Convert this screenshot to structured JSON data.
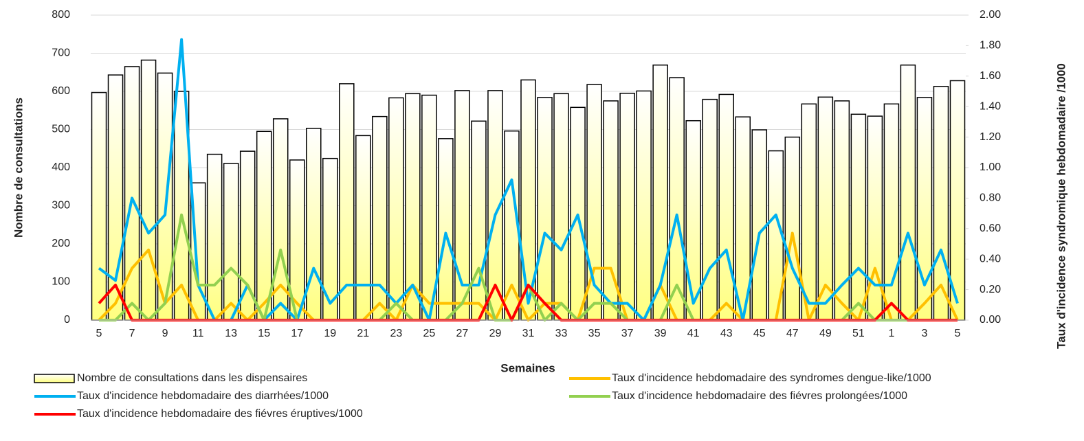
{
  "chart_data": {
    "type": "bar",
    "x_label": "Semaines",
    "y_label": "Nombre de consultations",
    "y2_label": "Taux d'incidence syndromique hebdomadaire /1000",
    "categories": [
      "5",
      null,
      "7",
      null,
      "9",
      null,
      "11",
      null,
      "13",
      null,
      "15",
      null,
      "17",
      null,
      "19",
      null,
      "21",
      null,
      "23",
      null,
      "25",
      null,
      "27",
      null,
      "29",
      null,
      "31",
      null,
      "33",
      null,
      "35",
      null,
      "37",
      null,
      "39",
      null,
      "41",
      null,
      "43",
      null,
      "45",
      null,
      "47",
      null,
      "49",
      null,
      "51",
      null,
      "1",
      null,
      "3",
      null,
      "5"
    ],
    "ylim": [
      0,
      800
    ],
    "yticks": [
      0,
      100,
      200,
      300,
      400,
      500,
      600,
      700,
      800
    ],
    "y2lim": [
      0,
      2
    ],
    "y2ticks": [
      {
        "value": 0,
        "label": "0.00"
      },
      {
        "value": 0.2,
        "label": "0.20"
      },
      {
        "value": 0.4,
        "label": "0.40"
      },
      {
        "value": 0.6,
        "label": "0.60"
      },
      {
        "value": 0.8,
        "label": "0.80"
      },
      {
        "value": 1,
        "label": "1.00"
      },
      {
        "value": 1.2,
        "label": "1.20"
      },
      {
        "value": 1.4,
        "label": "1.40"
      },
      {
        "value": 1.6,
        "label": "1.60"
      },
      {
        "value": 1.8,
        "label": "1.80"
      },
      {
        "value": 2,
        "label": "2.00"
      }
    ],
    "grid": true,
    "series": [
      {
        "name": "Nombre de consultations dans les dispensaires",
        "type": "bar",
        "axis": "y",
        "color": "#ffff80",
        "values": [
          597,
          643,
          665,
          682,
          648,
          600,
          360,
          435,
          411,
          443,
          495,
          528,
          420,
          503,
          424,
          620,
          484,
          534,
          583,
          594,
          590,
          476,
          602,
          522,
          602,
          496,
          630,
          584,
          594,
          558,
          618,
          575,
          595,
          601,
          669,
          636,
          523,
          579,
          592,
          533,
          499,
          444,
          480,
          567,
          585,
          575,
          540,
          535,
          567,
          669,
          584,
          613,
          628
        ]
      },
      {
        "name": "Taux d'incidence hebdomadaire des syndromes dengue-like/1000",
        "type": "line",
        "axis": "y2",
        "color": "#ffc000",
        "values": [
          0,
          0.11,
          0.34,
          0.46,
          0.11,
          0.23,
          0,
          0,
          0.11,
          0,
          0.11,
          0.23,
          0.11,
          0,
          0,
          0,
          0,
          0.11,
          0,
          0.23,
          0.11,
          0.11,
          0.11,
          0.11,
          0,
          0.23,
          0,
          0.11,
          0.11,
          0,
          0.34,
          0.34,
          0,
          0,
          0.23,
          0,
          0,
          0,
          0.11,
          0,
          0,
          0,
          0.57,
          0,
          0.23,
          0.11,
          0,
          0.34,
          0,
          0,
          0.11,
          0.23,
          0
        ]
      },
      {
        "name": "Taux d'incidence hebdomadaire des diarrhées/1000",
        "type": "line",
        "axis": "y2",
        "color": "#00b0f0",
        "values": [
          0.34,
          0.26,
          0.8,
          0.57,
          0.69,
          1.84,
          0.23,
          0,
          0,
          0.23,
          0,
          0.11,
          0,
          0.34,
          0.11,
          0.23,
          0.23,
          0.23,
          0.11,
          0.23,
          0,
          0.57,
          0.23,
          0.23,
          0.69,
          0.92,
          0.11,
          0.57,
          0.46,
          0.69,
          0.23,
          0.11,
          0.11,
          0,
          0.23,
          0.69,
          0.11,
          0.34,
          0.46,
          0,
          0.57,
          0.69,
          0.34,
          0.11,
          0.11,
          0.23,
          0.34,
          0.23,
          0.23,
          0.57,
          0.23,
          0.46,
          0.11
        ]
      },
      {
        "name": "Taux d'incidence hebdomadaire des fiévres prolongées/1000",
        "type": "line",
        "axis": "y2",
        "color": "#92d050",
        "values": [
          0,
          0,
          0.11,
          0,
          0.11,
          0.69,
          0.23,
          0.23,
          0.34,
          0.23,
          0,
          0.46,
          0,
          0,
          0,
          0,
          0,
          0,
          0.11,
          0,
          0,
          0,
          0.11,
          0.34,
          0,
          0,
          0.23,
          0,
          0.11,
          0,
          0.11,
          0.11,
          0,
          0,
          0,
          0.23,
          0,
          0,
          0,
          0,
          0,
          0,
          0,
          0,
          0,
          0,
          0.11,
          0,
          0,
          0,
          0,
          0,
          0
        ]
      },
      {
        "name": "Taux d'incidence hebdomadaire des fiévres éruptives/1000",
        "type": "line",
        "axis": "y2",
        "color": "#ff0000",
        "values": [
          0.11,
          0.23,
          0,
          0,
          0,
          0,
          0,
          0,
          0,
          0,
          0,
          0,
          0,
          0,
          0,
          0,
          0,
          0,
          0,
          0,
          0,
          0,
          0,
          0,
          0.23,
          0,
          0.23,
          0.11,
          0,
          0,
          0,
          0,
          0,
          0,
          0,
          0,
          0,
          0,
          0,
          0,
          0,
          0,
          0,
          0,
          0,
          0,
          0,
          0,
          0.11,
          0,
          0,
          0,
          0
        ]
      }
    ]
  }
}
